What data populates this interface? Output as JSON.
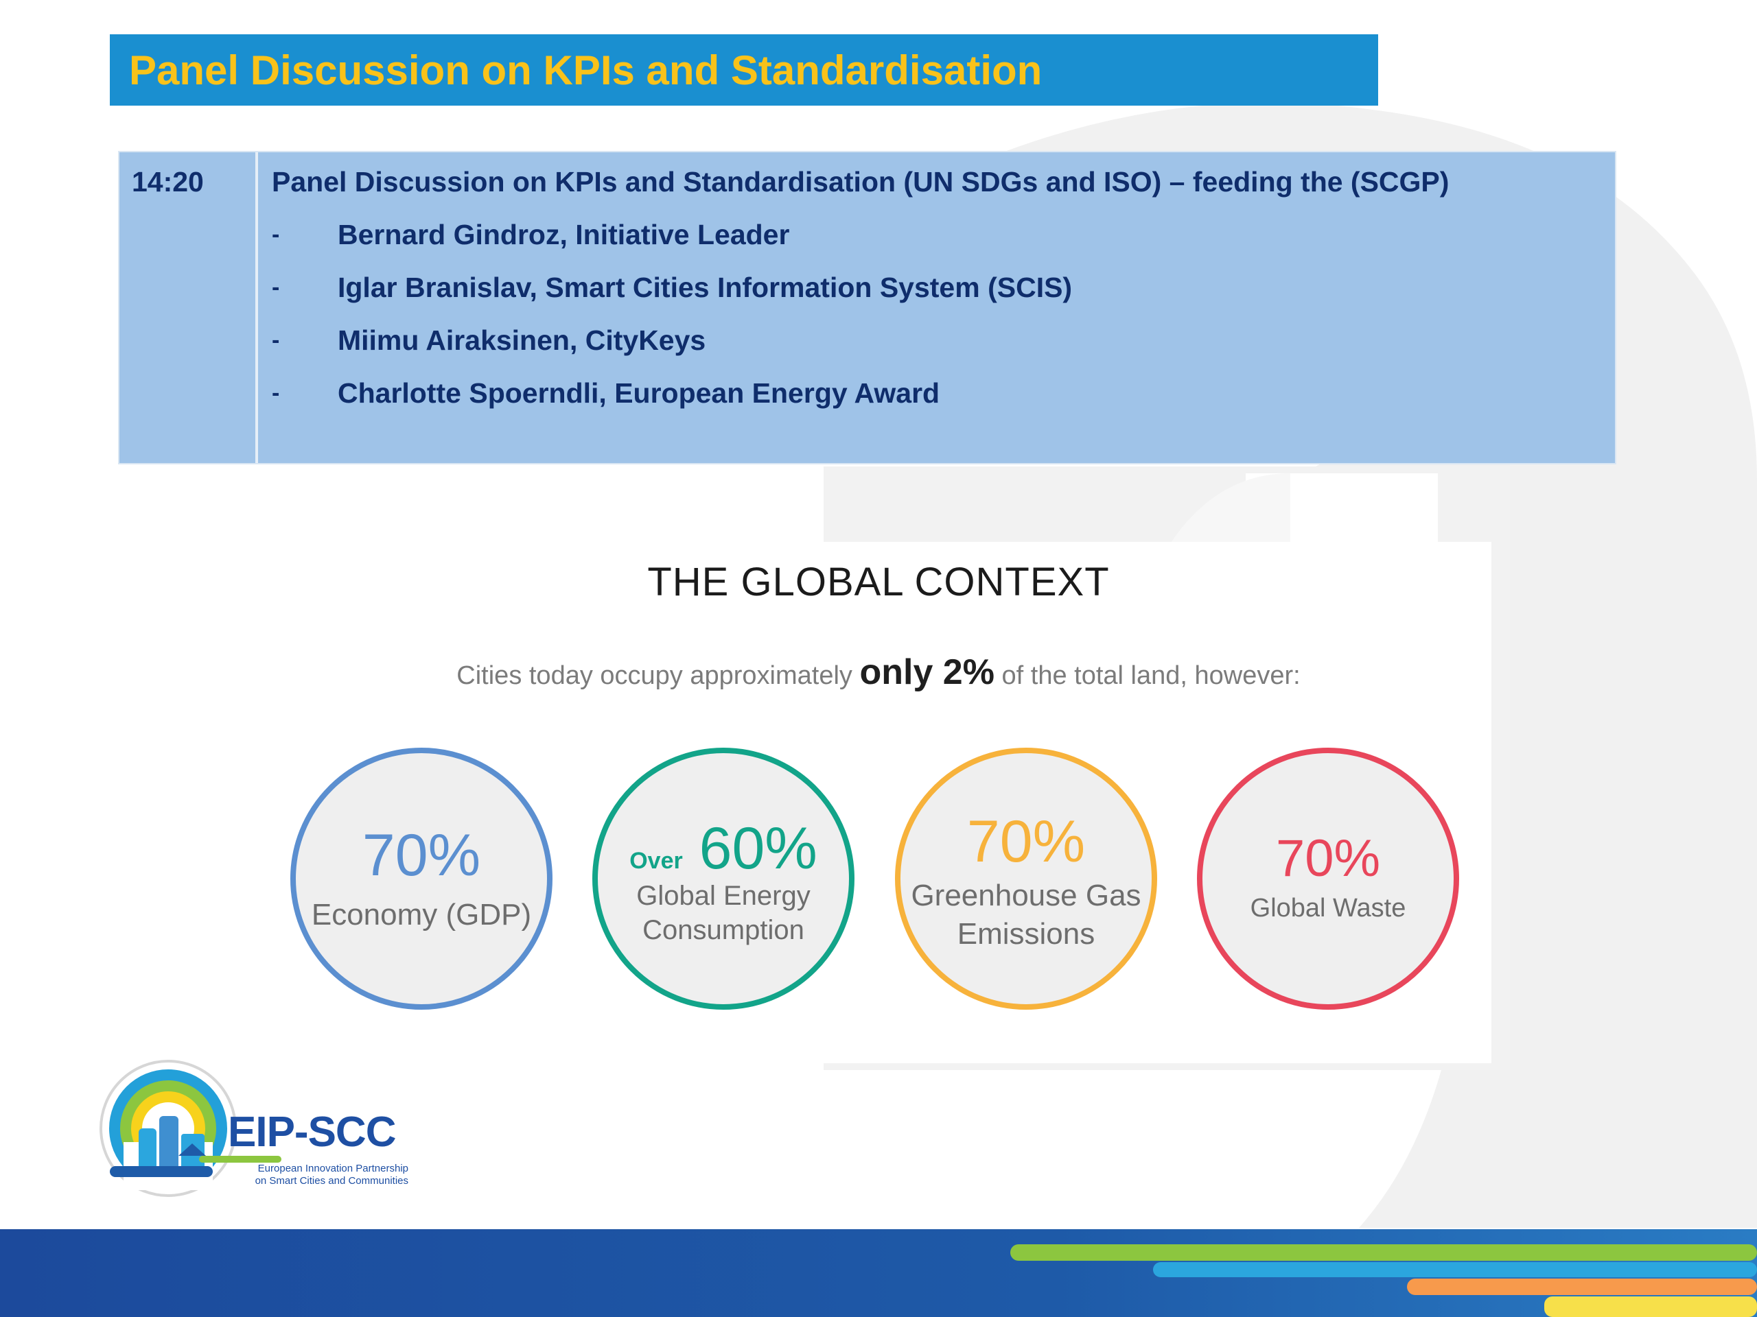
{
  "header": {
    "title": "Panel Discussion on KPIs and Standardisation"
  },
  "agenda": {
    "time": "14:20",
    "heading": "Panel Discussion on KPIs and Standardisation (UN SDGs and ISO) – feeding the (SCGP)",
    "bullet": "-",
    "speakers": [
      "Bernard Gindroz, Initiative Leader",
      "Iglar Branislav, Smart Cities Information System (SCIS)",
      "Miimu Airaksinen, CityKeys",
      "Charlotte Spoerndli, European Energy Award"
    ]
  },
  "context": {
    "title": "THE GLOBAL CONTEXT",
    "sub_before": "Cities today occupy approximately ",
    "sub_highlight": "only 2%",
    "sub_after": " of the total land, however:",
    "stats": [
      {
        "prefix": "",
        "value": "70%",
        "line1": "Economy (GDP)",
        "line2": "",
        "color": "#5b8fd0"
      },
      {
        "prefix": "Over",
        "value": "60%",
        "line1": "Global Energy",
        "line2": "Consumption",
        "color": "#12a489"
      },
      {
        "prefix": "",
        "value": "70%",
        "line1": "Greenhouse Gas",
        "line2": "Emissions",
        "color": "#f7b23b"
      },
      {
        "prefix": "",
        "value": "70%",
        "line1": "Global Waste",
        "line2": "",
        "color": "#e8465b"
      }
    ]
  },
  "logo": {
    "name": "EIP-SCC",
    "tagline1": "European Innovation Partnership",
    "tagline2": "on Smart Cities and Communities"
  },
  "colors": {
    "title_bar": "#1a8fd0",
    "title_text": "#f9c21a",
    "agenda_bg": "#9fc3e8",
    "agenda_text": "#0f2d6b",
    "footer": "#1e4fa3"
  }
}
